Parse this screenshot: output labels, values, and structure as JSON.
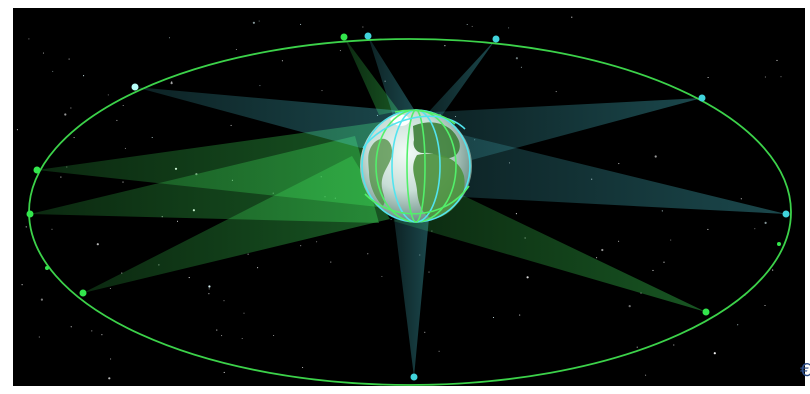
{
  "scene": {
    "subject": "satellite-constellation-orbit",
    "colors": {
      "space": "#000000",
      "orbit": "#3cd24a",
      "green_satellite": "#33e64d",
      "cyan_satellite": "#41d4dc",
      "green_beam": "#2fa83c",
      "cyan_beam": "#3fb8c2",
      "earth_ocean": "#d6e8e6",
      "earth_land": "#3e8f3d",
      "grid_cyan": "#52e4ef",
      "grid_green": "#52f06a"
    },
    "satellite_count": 13,
    "corner_mark": "€"
  }
}
